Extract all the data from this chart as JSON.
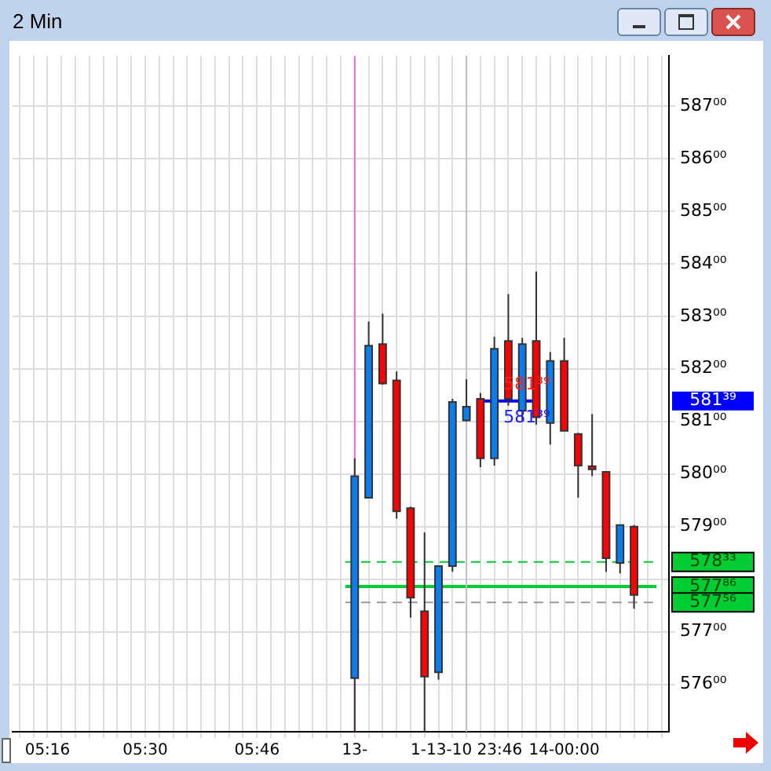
{
  "chart_data": {
    "type": "candlestick",
    "title": "2 Min",
    "categories": [
      null,
      null,
      "05:16",
      null,
      null,
      null,
      null,
      null,
      null,
      "05:30",
      null,
      null,
      null,
      null,
      null,
      null,
      null,
      "05:46",
      null,
      null,
      null,
      null,
      null,
      null,
      "13-",
      null,
      null,
      null,
      null,
      null,
      null,
      null,
      "1-13-10 23:46",
      null,
      null,
      null,
      null,
      null,
      null,
      "14-00:00",
      null,
      null,
      null,
      null,
      null,
      null,
      null
    ],
    "ohlc": [
      null,
      null,
      null,
      null,
      null,
      null,
      null,
      null,
      null,
      null,
      null,
      null,
      null,
      null,
      null,
      null,
      null,
      null,
      null,
      null,
      null,
      null,
      null,
      null,
      [
        576.12,
        580.3,
        575.1,
        579.96
      ],
      [
        579.55,
        582.9,
        579.55,
        582.44
      ],
      [
        582.47,
        583.05,
        581.7,
        581.72
      ],
      [
        581.78,
        581.95,
        579.15,
        579.29
      ],
      [
        579.35,
        579.38,
        577.27,
        577.65
      ],
      [
        577.39,
        578.89,
        575.11,
        576.15
      ],
      [
        576.23,
        578.25,
        576.09,
        578.25
      ],
      [
        578.25,
        581.43,
        578.14,
        581.37
      ],
      [
        581.02,
        581.8,
        581.0,
        581.28
      ],
      [
        581.43,
        581.54,
        580.13,
        580.3
      ],
      [
        580.3,
        582.61,
        580.16,
        582.38
      ],
      [
        582.53,
        583.42,
        581.3,
        581.43
      ],
      [
        581.2,
        582.59,
        581.02,
        582.47
      ],
      [
        582.53,
        583.85,
        580.94,
        581.08
      ],
      [
        580.97,
        582.32,
        580.56,
        582.15
      ],
      [
        582.15,
        582.59,
        580.82,
        580.82
      ],
      [
        580.76,
        580.78,
        579.55,
        580.16
      ],
      [
        580.15,
        581.14,
        579.96,
        580.1
      ],
      [
        580.04,
        580.04,
        578.14,
        578.4
      ],
      [
        578.31,
        579.03,
        578.11,
        579.03
      ],
      [
        579.0,
        579.03,
        577.44,
        577.7
      ],
      null,
      null
    ],
    "colors": [
      null,
      null,
      null,
      null,
      null,
      null,
      null,
      null,
      null,
      null,
      null,
      null,
      null,
      null,
      null,
      null,
      null,
      null,
      null,
      null,
      null,
      null,
      null,
      null,
      "#0a7ef0",
      "#0a7ef0",
      "#ff0000",
      "#ff0000",
      "#ff0000",
      "#ff0000",
      "#0a7ef0",
      "#0a7ef0",
      "#0a7ef0",
      "#ff0000",
      "#0a7ef0",
      "#ff0000",
      "#0a7ef0",
      "#ff0000",
      "#0a7ef0",
      "#ff0000",
      "#ff0000",
      "#ff0000",
      "#ff0000",
      "#0a7ef0",
      "#ff0000",
      null,
      null
    ],
    "series": [
      {
        "type": "line",
        "color": "#0000ff",
        "values": [
          null,
          null,
          null,
          null,
          null,
          null,
          null,
          null,
          null,
          null,
          null,
          null,
          null,
          null,
          null,
          null,
          null,
          null,
          null,
          null,
          null,
          null,
          null,
          null,
          null,
          null,
          null,
          null,
          null,
          null,
          null,
          null,
          null,
          581.39,
          581.39,
          581.39,
          581.39,
          581.39,
          null,
          null,
          null,
          null,
          null,
          null,
          null,
          null,
          null
        ]
      }
    ],
    "ylim": [
      575.1,
      587.95
    ],
    "yticks": [
      {
        "value": 576,
        "label": "576⁰⁰"
      },
      {
        "value": 577,
        "label": "577⁰⁰"
      },
      {
        "value": 578,
        "label": null
      },
      {
        "value": 579,
        "label": "579⁰⁰"
      },
      {
        "value": 580,
        "label": "580⁰⁰"
      },
      {
        "value": 581,
        "label": "581⁰⁰"
      },
      {
        "value": 582,
        "label": "582⁰⁰"
      },
      {
        "value": 583,
        "label": "583⁰⁰"
      },
      {
        "value": 584,
        "label": "584⁰⁰"
      },
      {
        "value": 585,
        "label": "585⁰⁰"
      },
      {
        "value": 586,
        "label": "586⁰⁰"
      },
      {
        "value": 587,
        "label": "587⁰⁰"
      }
    ],
    "ref_lines": [
      {
        "axis": "y",
        "value": 578.33,
        "label": "578³³",
        "color": "#00cc33",
        "line_style": "dashed"
      },
      {
        "axis": "y",
        "value": 577.86,
        "label": "577⁸⁶",
        "color": "#00cc33",
        "line_style": "solid"
      },
      {
        "axis": "y",
        "value": 577.56,
        "label": "577⁵⁶",
        "color": "#999999",
        "line_style": "dashed"
      },
      {
        "axis": "x",
        "value": "1-13-10 23:46",
        "color": "#c0c0c0",
        "line_style": "solid"
      },
      {
        "axis": "x",
        "value": "13-",
        "color": "#ff66cc",
        "line_style": "solid"
      }
    ],
    "annotations": [
      {
        "text": "581³⁹",
        "y": 581.39
      },
      {
        "text": "581³⁹",
        "y": 581.39
      },
      "581³⁹"
    ],
    "grid": true,
    "legend": false
  }
}
